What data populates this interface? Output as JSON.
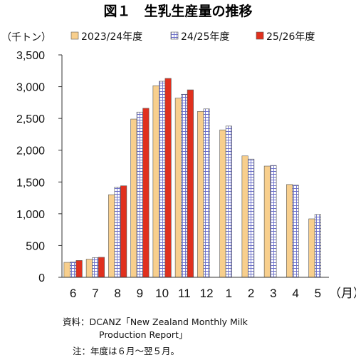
{
  "colors": {
    "s1_fill": "#F8CF8D",
    "s2_fill": "#FFFFFF",
    "s2_grid": "#6A6EC9",
    "s3_fill": "#E0301E",
    "bar_stroke": "#555555",
    "axis": "#333333"
  },
  "chart_data": {
    "type": "bar",
    "title": "図１　生乳生産量の推移",
    "ylabel": "（千トン）",
    "xlabel": "（月）",
    "categories": [
      "6",
      "7",
      "8",
      "9",
      "10",
      "11",
      "12",
      "1",
      "2",
      "3",
      "4",
      "5"
    ],
    "ylim": [
      0,
      3500
    ],
    "yticks": [
      "0",
      "500",
      "1,000",
      "1,500",
      "2,000",
      "2,500",
      "3,000",
      "3,500"
    ],
    "grid": false,
    "legend_position": "top",
    "series": [
      {
        "name": "2023/24年度",
        "values": [
          235,
          285,
          1300,
          2490,
          3015,
          2820,
          2610,
          2320,
          1910,
          1750,
          1460,
          920
        ]
      },
      {
        "name": "24/25年度",
        "values": [
          240,
          310,
          1420,
          2600,
          3085,
          2880,
          2650,
          2380,
          1860,
          1760,
          1450,
          990
        ]
      },
      {
        "name": "25/26年度",
        "values": [
          265,
          315,
          1440,
          2660,
          3130,
          2950,
          null,
          null,
          null,
          null,
          null,
          null
        ]
      }
    ],
    "notes": [
      "資料：DCANZ「New Zealand Monthly Milk",
      "Production Report」",
      "注：年度は６月～翌５月。"
    ]
  }
}
